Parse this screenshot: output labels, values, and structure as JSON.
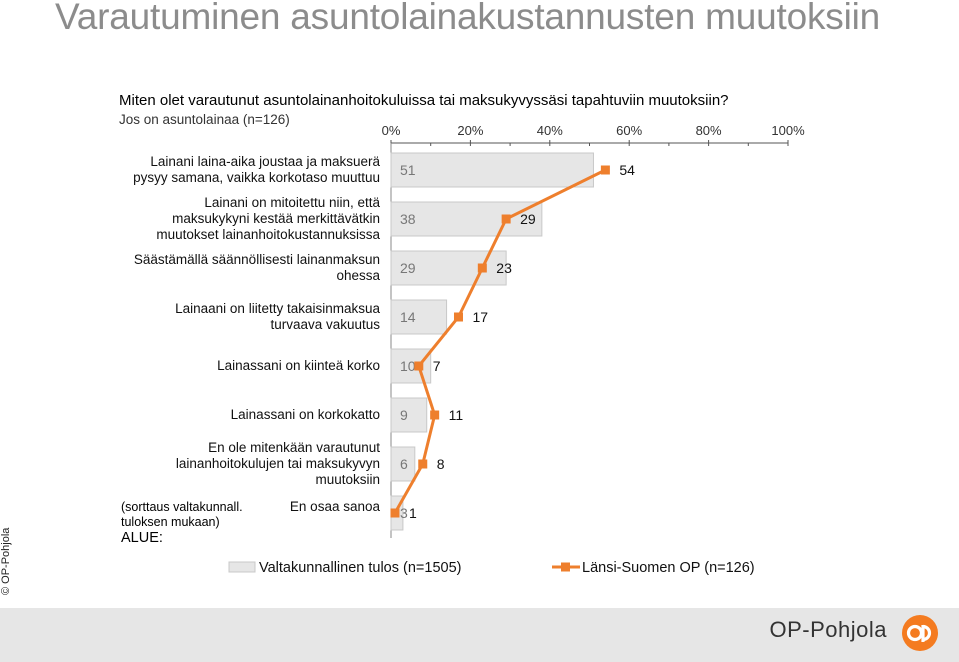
{
  "title": "Varautuminen asuntolainakustannusten muutoksiin",
  "question": "Miten olet varautunut  asuntolainanhoitokuluissa  tai maksukyvyssäsi tapahtuviin muutoksiin?",
  "subquestion": "Jos on asuntolainaa (n=126)",
  "sort_note_line1": "(sorttaus valtakunnall.",
  "sort_note_line2": "tuloksen mukaan)",
  "area_label": "ALUE:",
  "copyright": "© OP-Pohjola",
  "brand": "OP-Pohjola",
  "chart_data": {
    "type": "bar",
    "orientation": "horizontal",
    "xlim": [
      0,
      100
    ],
    "x_ticks": [
      "0%",
      "20%",
      "40%",
      "60%",
      "80%",
      "100%"
    ],
    "categories": [
      [
        "Lainani laina-aika joustaa ja maksuerä",
        "pysyy samana, vaikka korkotaso muuttuu"
      ],
      [
        "Lainani on mitoitettu niin, että",
        "maksukykyni kestää merkittävätkin",
        "muutokset lainanhoitokustannuksissa"
      ],
      [
        "Säästämällä säännöllisesti lainanmaksun",
        "ohessa"
      ],
      [
        "Lainaani on liitetty takaisinmaksua",
        "turvaava vakuutus"
      ],
      [
        "Lainassani on kiinteä korko"
      ],
      [
        "Lainassani on korkokatto"
      ],
      [
        "En ole mitenkään varautunut",
        "lainanhoitokulujen tai maksukyvyn",
        "muutoksiin"
      ],
      [
        "En osaa sanoa"
      ]
    ],
    "series": [
      {
        "name": "Valtakunnallinen tulos (n=1505)",
        "type": "bar",
        "color": "#e6e6e6",
        "values": [
          51,
          38,
          29,
          14,
          10,
          9,
          6,
          3
        ]
      },
      {
        "name": "Länsi-Suomen OP (n=126)",
        "type": "line",
        "color": "#ee7f2d",
        "values": [
          54,
          29,
          23,
          17,
          7,
          11,
          8,
          1
        ]
      }
    ],
    "grid": false,
    "legend_position": "bottom"
  }
}
